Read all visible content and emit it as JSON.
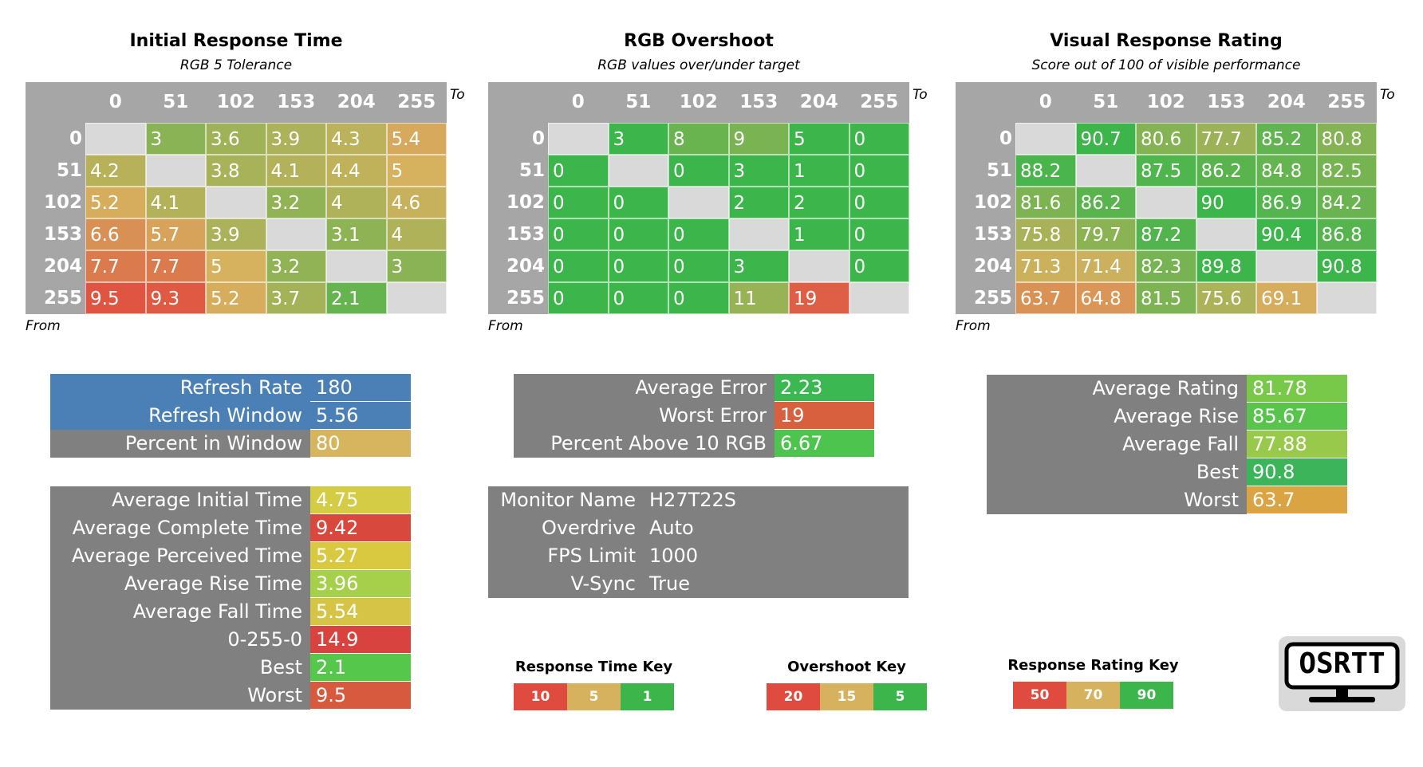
{
  "matrices": [
    {
      "title": "Initial Response Time",
      "subtitle": "RGB 5 Tolerance",
      "to": "To",
      "from": "From",
      "columns": [
        0,
        51,
        102,
        153,
        204,
        255
      ],
      "rows": [
        {
          "label": 0,
          "values": [
            null,
            3,
            3.6,
            3.9,
            4.3,
            5.4
          ]
        },
        {
          "label": 51,
          "values": [
            4.2,
            null,
            3.8,
            4.1,
            4.4,
            5
          ]
        },
        {
          "label": 102,
          "values": [
            5.2,
            4.1,
            null,
            3.2,
            4,
            4.6
          ]
        },
        {
          "label": 153,
          "values": [
            6.6,
            5.7,
            3.9,
            null,
            3.1,
            4
          ]
        },
        {
          "label": 204,
          "values": [
            7.7,
            7.7,
            5,
            3.2,
            null,
            3
          ]
        },
        {
          "label": 255,
          "values": [
            9.5,
            9.3,
            5.2,
            3.7,
            2.1,
            null
          ]
        }
      ]
    },
    {
      "title": "RGB Overshoot",
      "subtitle": "RGB values over/under target",
      "to": "To",
      "from": "From",
      "columns": [
        0,
        51,
        102,
        153,
        204,
        255
      ],
      "rows": [
        {
          "label": 0,
          "values": [
            null,
            3,
            8,
            9,
            5,
            0
          ]
        },
        {
          "label": 51,
          "values": [
            0,
            null,
            0,
            3,
            1,
            0
          ]
        },
        {
          "label": 102,
          "values": [
            0,
            0,
            null,
            2,
            2,
            0
          ]
        },
        {
          "label": 153,
          "values": [
            0,
            0,
            0,
            null,
            1,
            0
          ]
        },
        {
          "label": 204,
          "values": [
            0,
            0,
            0,
            3,
            null,
            0
          ]
        },
        {
          "label": 255,
          "values": [
            0,
            0,
            0,
            11,
            19,
            null
          ]
        }
      ]
    },
    {
      "title": "Visual Response Rating",
      "subtitle": "Score out of 100 of visible performance",
      "to": "To",
      "from": "From",
      "columns": [
        0,
        51,
        102,
        153,
        204,
        255
      ],
      "rows": [
        {
          "label": 0,
          "values": [
            null,
            90.7,
            80.6,
            77.7,
            85.2,
            80.8
          ]
        },
        {
          "label": 51,
          "values": [
            88.2,
            null,
            87.5,
            86.2,
            84.8,
            82.5
          ]
        },
        {
          "label": 102,
          "values": [
            81.6,
            86.2,
            null,
            90,
            86.9,
            84.2
          ]
        },
        {
          "label": 153,
          "values": [
            75.8,
            79.7,
            87.2,
            null,
            90.4,
            86.8
          ]
        },
        {
          "label": 204,
          "values": [
            71.3,
            71.4,
            82.3,
            89.8,
            null,
            90.8
          ]
        },
        {
          "label": 255,
          "values": [
            63.7,
            64.8,
            81.5,
            75.6,
            69.1,
            null
          ]
        }
      ]
    }
  ],
  "summaries": [
    {
      "rows": [
        {
          "label": "Refresh Rate",
          "value": 180,
          "color": "#4a80b5",
          "label_color": "#4a80b5"
        },
        {
          "label": "Refresh Window",
          "value": 5.56,
          "color": "#4a80b5",
          "label_color": "#4a80b5"
        },
        {
          "label": "Percent in Window",
          "value": 80,
          "color": "#d6b55e"
        }
      ]
    },
    {
      "rows": [
        {
          "label": "Average Initial Time",
          "value": 4.75,
          "color": "#d4cc45"
        },
        {
          "label": "Average Complete Time",
          "value": 9.42,
          "color": "#d9483c"
        },
        {
          "label": "Average Perceived Time",
          "value": 5.27,
          "color": "#d9c940"
        },
        {
          "label": "Average Rise Time",
          "value": 3.96,
          "color": "#a6cf4a"
        },
        {
          "label": "Average Fall Time",
          "value": 5.54,
          "color": "#d6c447"
        },
        {
          "label": "0-255-0",
          "value": 14.9,
          "color": "#d9433f"
        },
        {
          "label": "Best",
          "value": 2.1,
          "color": "#55c84c"
        },
        {
          "label": "Worst",
          "value": 9.5,
          "color": "#d85a3e"
        }
      ]
    },
    {
      "rows": [
        {
          "label": "Average Error",
          "value": 2.23,
          "color": "#3cb852"
        },
        {
          "label": "Worst Error",
          "value": 19,
          "color": "#d9603f"
        },
        {
          "label": "Percent Above 10 RGB",
          "value": 6.67,
          "color": "#4dc44d"
        }
      ]
    },
    {
      "rows": [
        {
          "label": "Monitor Name",
          "value": "H27T22S"
        },
        {
          "label": "Overdrive",
          "value": "Auto"
        },
        {
          "label": "FPS Limit",
          "value": 1000
        },
        {
          "label": "V-Sync",
          "value": "True"
        }
      ]
    },
    {
      "rows": [
        {
          "label": "Average Rating",
          "value": 81.78,
          "color": "#78c84a"
        },
        {
          "label": "Average Rise",
          "value": 85.67,
          "color": "#58c44c"
        },
        {
          "label": "Average Fall",
          "value": 77.88,
          "color": "#98c94a"
        },
        {
          "label": "Best",
          "value": 90.8,
          "color": "#3cb55a"
        },
        {
          "label": "Worst",
          "value": 63.7,
          "color": "#d9a441"
        }
      ]
    }
  ],
  "keys": [
    {
      "title": "Response Time Key",
      "items": [
        {
          "value": 10,
          "color": "#e04b3f"
        },
        {
          "value": 5,
          "color": "#d6b15e"
        },
        {
          "value": 1,
          "color": "#3cb54a"
        }
      ]
    },
    {
      "title": "Overshoot Key",
      "items": [
        {
          "value": 20,
          "color": "#e04b3f"
        },
        {
          "value": 15,
          "color": "#d6b15e"
        },
        {
          "value": 5,
          "color": "#3cb54a"
        }
      ]
    },
    {
      "title": "Response Rating Key",
      "items": [
        {
          "value": 50,
          "color": "#e04b3f"
        },
        {
          "value": 70,
          "color": "#d6b15e"
        },
        {
          "value": 90,
          "color": "#3cb54a"
        }
      ]
    }
  ],
  "logo": {
    "text": "OSRTT"
  }
}
